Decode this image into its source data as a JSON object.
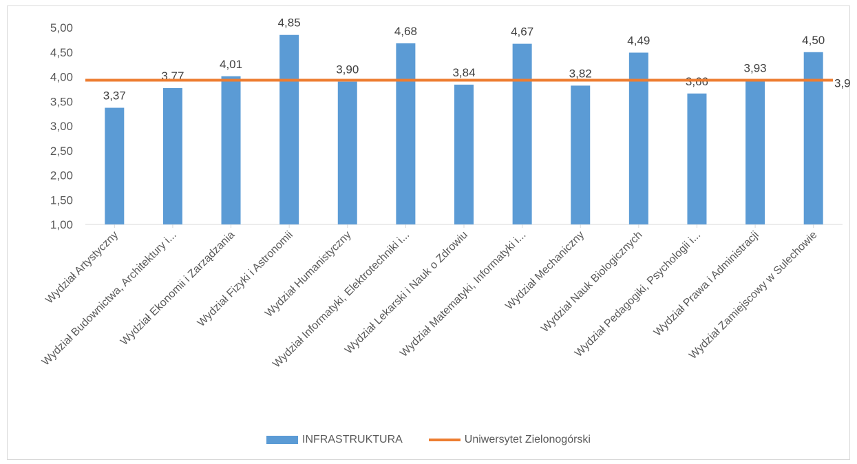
{
  "chart_data": {
    "type": "bar",
    "categories": [
      "Wydział Artystyczny",
      "Wydział Budownictwa, Architektury i...",
      "Wydział Ekonomii i Zarządzania",
      "Wydział Fizyki i Astronomii",
      "Wydział Humanistyczny",
      "Wydział Informatyki, Elektrotechniki i...",
      "Wydział Lekarski i Nauk o Zdrowiu",
      "Wydział Matematyki, Informatyki i...",
      "Wydział Mechaniczny",
      "Wydział Nauk Biologicznych",
      "Wydział Pedagogiki, Psychologii i...",
      "Wydział Prawa i Administracji",
      "Wydział Zamiejscowy w Sulechowie"
    ],
    "series": [
      {
        "name": "INFRASTRUKTURA",
        "type": "bar",
        "color": "#5b9bd5",
        "values": [
          3.37,
          3.77,
          4.01,
          4.85,
          3.9,
          4.68,
          3.84,
          4.67,
          3.82,
          4.49,
          3.66,
          3.93,
          4.5
        ],
        "labels": [
          "3,37",
          "3,77",
          "4,01",
          "4,85",
          "3,90",
          "4,68",
          "3,84",
          "4,67",
          "3,82",
          "4,49",
          "3,66",
          "3,93",
          "4,50"
        ]
      },
      {
        "name": "Uniwersytet Zielonogórski",
        "type": "line",
        "color": "#ed7d31",
        "value": 3.93,
        "label": "3,9"
      }
    ],
    "ylim": [
      1.0,
      5.0
    ],
    "yticks": [
      1.0,
      1.5,
      2.0,
      2.5,
      3.0,
      3.5,
      4.0,
      4.5,
      5.0
    ],
    "ytick_labels": [
      "1,00",
      "1,50",
      "2,00",
      "2,50",
      "3,00",
      "3,50",
      "4,00",
      "4,50",
      "5,00"
    ],
    "grid": false,
    "legend_position": "bottom"
  }
}
